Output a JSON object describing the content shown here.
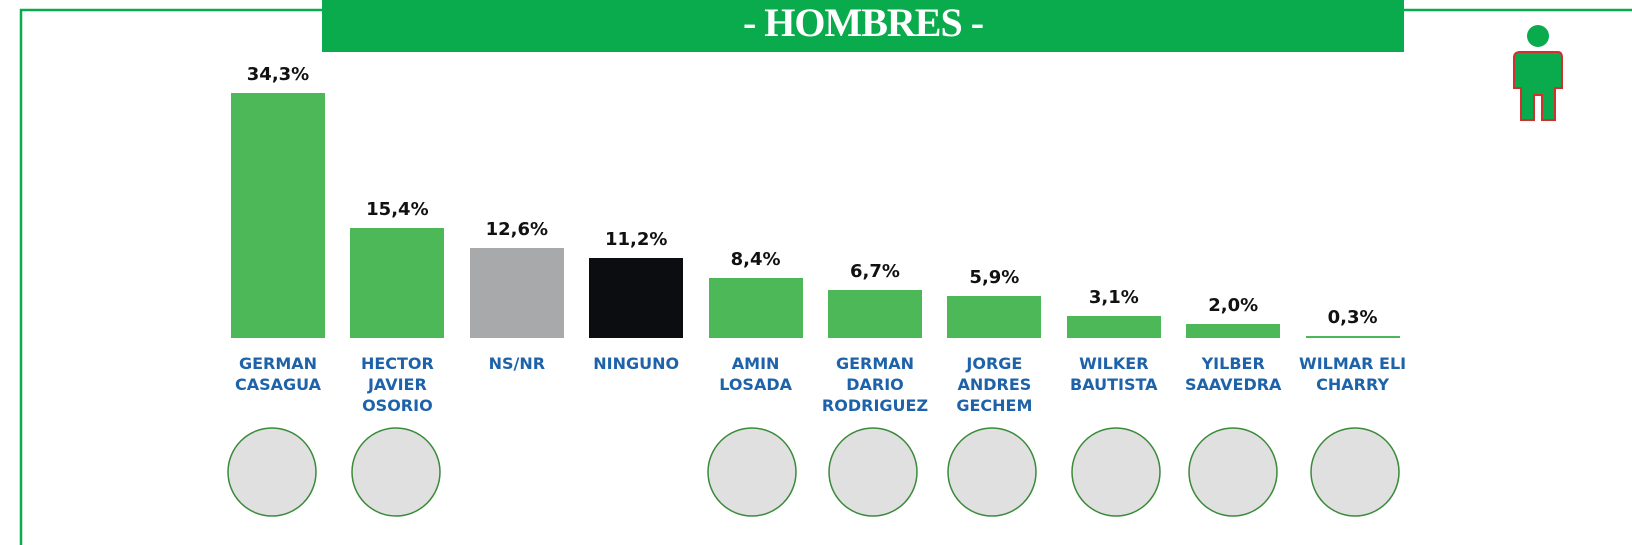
{
  "chart_data": {
    "type": "bar",
    "title": "- HOMBRES -",
    "categories": [
      "GERMAN CASAGUA",
      "HECTOR JAVIER OSORIO",
      "NS/NR",
      "NINGUNO",
      "AMIN LOSADA",
      "GERMAN DARIO RODRIGUEZ",
      "JORGE ANDRES GECHEM",
      "WILKER BAUTISTA",
      "YILBER SAAVEDRA",
      "WILMAR ELI CHARRY"
    ],
    "values": [
      34.3,
      15.4,
      12.6,
      11.2,
      8.4,
      6.7,
      5.9,
      3.1,
      2.0,
      0.3
    ],
    "value_labels": [
      "34,3%",
      "15,4%",
      "12,6%",
      "11,2%",
      "8,4%",
      "6,7%",
      "5,9%",
      "3,1%",
      "2,0%",
      "0,3%"
    ],
    "colors": [
      "#4cb857",
      "#4cb857",
      "#a7a9ab",
      "#0b0d10",
      "#4cb857",
      "#4cb857",
      "#4cb857",
      "#4cb857",
      "#4cb857",
      "#4cb857"
    ]
  }
}
